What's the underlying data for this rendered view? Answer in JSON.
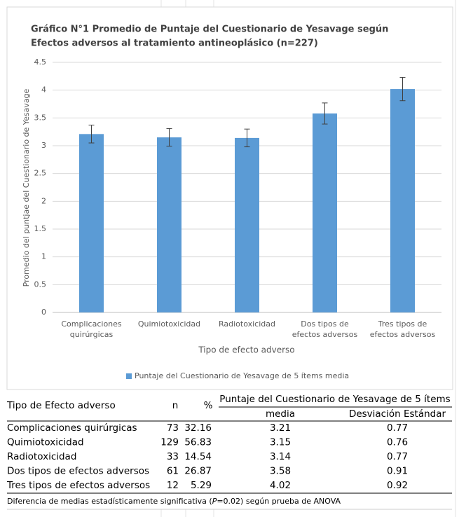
{
  "chart_data": {
    "type": "bar",
    "title": [
      "Gráfico N°1 Promedio de Puntaje del Cuestionario de Yesavage según",
      "Efectos adversos al tratamiento antineoplásico  (n=227)"
    ],
    "y_label": "Promedio del puntjae del Cuestionario de Yesavage",
    "x_label": "Tipo de efecto adverso",
    "categories": [
      "Complicaciones quirúrgicas",
      "Quimiotoxicidad",
      "Radiotoxicidad",
      "Dos tipos de efectos adversos",
      "Tres tipos de efectos adversos"
    ],
    "series": [
      {
        "name": "Puntaje del Cuestionario de Yesavage de 5 ítems media",
        "color": "#5b9bd5",
        "values": [
          3.21,
          3.15,
          3.14,
          3.58,
          4.02
        ],
        "errors": [
          0.16,
          0.16,
          0.16,
          0.19,
          0.21
        ]
      }
    ],
    "ylim": [
      0,
      4.5
    ],
    "yticks": [
      0,
      0.5,
      1,
      1.5,
      2,
      2.5,
      3,
      3.5,
      4,
      4.5
    ],
    "grid": true,
    "legend": "bottom"
  },
  "table": {
    "header": [
      "Tipo de Efecto adverso",
      "n",
      "%"
    ],
    "group_header": "Puntaje del Cuestionario de Yesavage de 5 ítems",
    "sub_header": [
      "media",
      "Desviación Estándar"
    ],
    "rows": [
      [
        "Complicaciones quirúrgicas",
        73,
        32.16,
        3.21,
        0.77
      ],
      [
        "Quimiotoxicidad",
        129,
        56.83,
        3.15,
        0.76
      ],
      [
        "Radiotoxicidad",
        33,
        14.54,
        3.14,
        0.77
      ],
      [
        "Dos tipos de efectos adversos",
        61,
        26.87,
        3.58,
        0.91
      ],
      [
        "Tres tipos de efectos adversos",
        12,
        5.29,
        4.02,
        0.92
      ]
    ],
    "footnote": [
      "Diferencia de medias estadísticamente significativa (",
      "P",
      "=0.02) según prueba de ANOVA"
    ]
  }
}
